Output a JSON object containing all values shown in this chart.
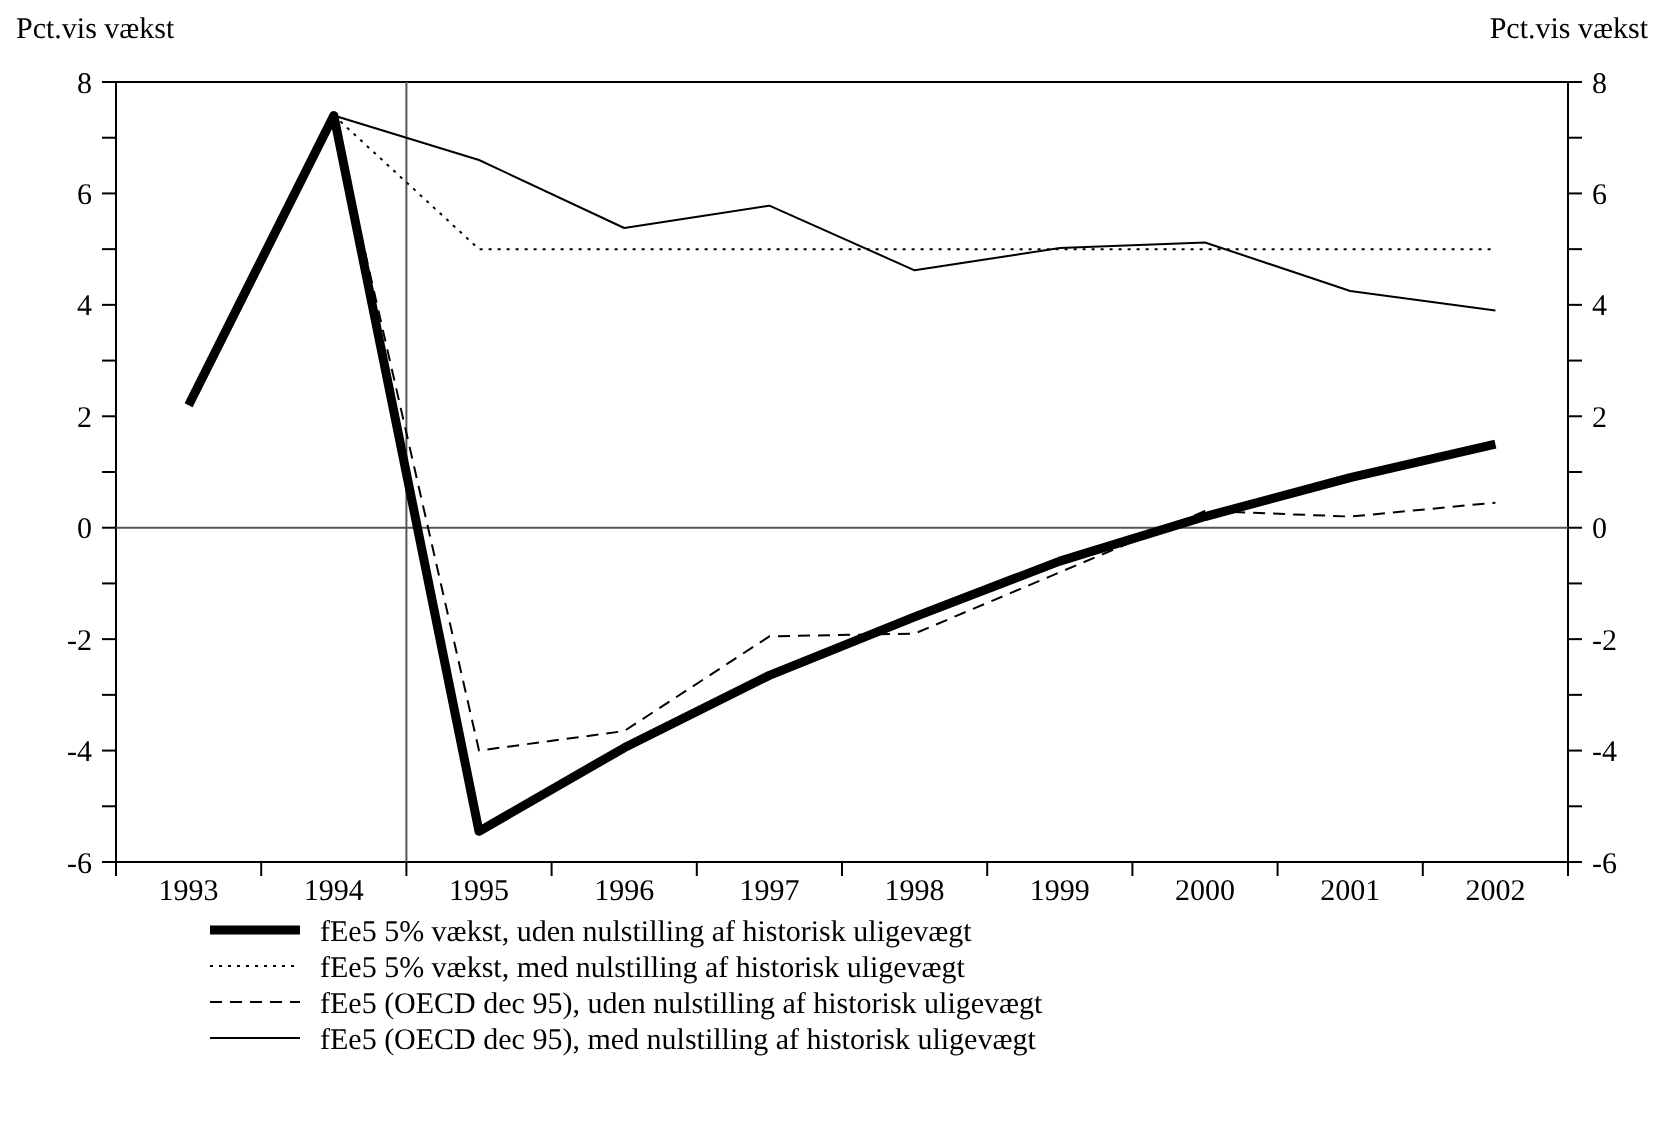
{
  "chart_data": {
    "type": "line",
    "ylabel": "Pct.vis vækst",
    "y2label": "Pct.vis vækst",
    "x": [
      1993,
      1994,
      1995,
      1996,
      1997,
      1998,
      1999,
      2000,
      2001,
      2002
    ],
    "xlim": [
      1992.5,
      2002.5
    ],
    "xticks": [
      {
        "value": 1992.5,
        "label": null
      },
      {
        "value": 1993,
        "label": "1993"
      },
      {
        "value": 1993.5,
        "label": null
      },
      {
        "value": 1994,
        "label": "1994"
      },
      {
        "value": 1994.5,
        "label": null
      },
      {
        "value": 1995,
        "label": "1995"
      },
      {
        "value": 1995.5,
        "label": null
      },
      {
        "value": 1996,
        "label": "1996"
      },
      {
        "value": 1996.5,
        "label": null
      },
      {
        "value": 1997,
        "label": "1997"
      },
      {
        "value": 1997.5,
        "label": null
      },
      {
        "value": 1998,
        "label": "1998"
      },
      {
        "value": 1998.5,
        "label": null
      },
      {
        "value": 1999,
        "label": "1999"
      },
      {
        "value": 1999.5,
        "label": null
      },
      {
        "value": 2000,
        "label": "2000"
      },
      {
        "value": 2000.5,
        "label": null
      },
      {
        "value": 2001,
        "label": "2001"
      },
      {
        "value": 2001.5,
        "label": null
      },
      {
        "value": 2002,
        "label": "2002"
      },
      {
        "value": 2002.5,
        "label": null
      }
    ],
    "ylim": [
      -6,
      8
    ],
    "yticks": [
      -6,
      {
        "value": -5,
        "label": null
      },
      -4,
      {
        "value": -3,
        "label": null
      },
      -2,
      {
        "value": -1,
        "label": null
      },
      0,
      {
        "value": 1,
        "label": null
      },
      2,
      {
        "value": 3,
        "label": null
      },
      4,
      {
        "value": 5,
        "label": null
      },
      6,
      {
        "value": 7,
        "label": null
      },
      8
    ],
    "y2lim": [
      -6,
      8
    ],
    "y2ticks": [
      -6,
      {
        "value": -5,
        "label": null
      },
      -4,
      {
        "value": -3,
        "label": null
      },
      -2,
      {
        "value": -1,
        "label": null
      },
      0,
      {
        "value": 1,
        "label": null
      },
      2,
      {
        "value": 3,
        "label": null
      },
      4,
      {
        "value": 5,
        "label": null
      },
      6,
      {
        "value": 7,
        "label": null
      },
      8
    ],
    "series": [
      {
        "name": "fEe5 5% vækst, uden nulstilling af historisk uligevægt",
        "color": "#000000",
        "line_style": "solid",
        "values": [
          2.2,
          7.4,
          -5.45,
          -3.95,
          -2.65,
          -1.6,
          -0.6,
          0.2,
          0.9,
          1.5
        ]
      },
      {
        "name": "fEe5 5% vækst, med nulstilling af historisk uligevægt",
        "color": "#000000",
        "line_style": "dotted",
        "values": [
          null,
          7.4,
          5.0,
          5.0,
          5.0,
          5.0,
          5.0,
          5.0,
          5.0,
          5.0
        ]
      },
      {
        "name": "fEe5 (OECD dec 95), uden nulstilling af historisk uligevægt",
        "color": "#000000",
        "line_style": "dashed",
        "values": [
          null,
          7.4,
          -4.0,
          -3.65,
          -1.95,
          -1.9,
          -0.8,
          0.3,
          0.2,
          0.45
        ]
      },
      {
        "name": "fEe5 (OECD dec 95), med nulstilling af historisk uligevægt",
        "color": "#000000",
        "line_style": "solid",
        "values": [
          null,
          7.4,
          6.6,
          5.38,
          5.78,
          4.62,
          5.02,
          5.12,
          4.25,
          3.9
        ]
      }
    ],
    "ref_lines": [
      {
        "axis": "x",
        "value": 1994.5,
        "color": "#555555"
      },
      {
        "axis": "y",
        "value": 0,
        "color": "#555555"
      }
    ],
    "grid": false,
    "legend": "bottom"
  }
}
